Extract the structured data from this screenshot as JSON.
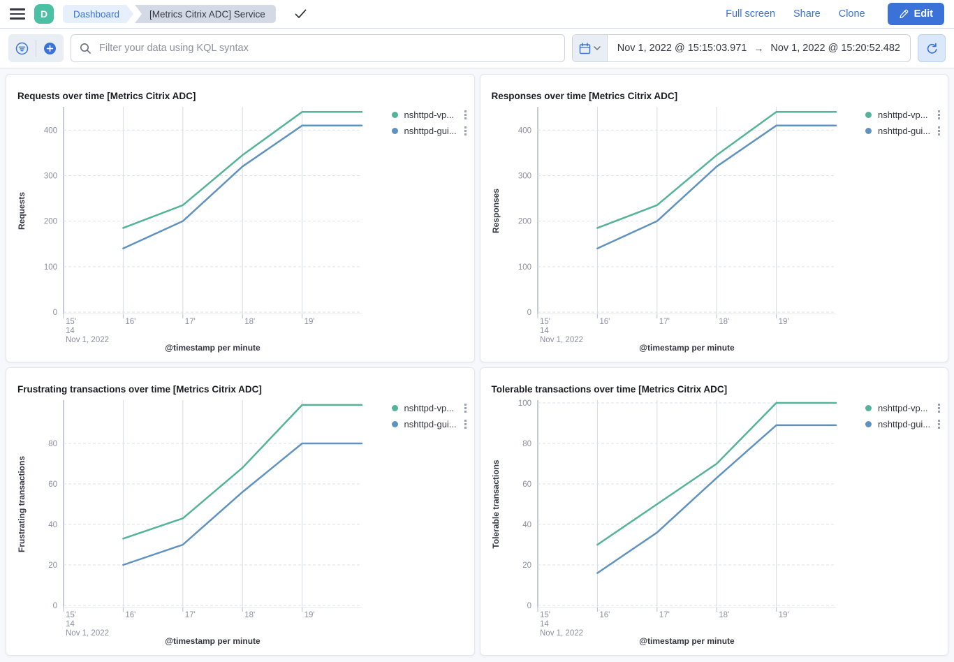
{
  "header": {
    "avatar_initial": "D",
    "breadcrumbs": [
      "Dashboard",
      "[Metrics Citrix ADC] Service"
    ],
    "actions": [
      "Full screen",
      "Share",
      "Clone"
    ],
    "edit_label": "Edit"
  },
  "toolbar": {
    "search_placeholder": "Filter your data using KQL syntax",
    "date_start": "Nov 1, 2022 @ 15:15:03.971",
    "date_end": "Nov 1, 2022 @ 15:20:52.482"
  },
  "colors": {
    "accent_blue": "#3a72d8",
    "avatar_green": "#4cc0a4",
    "breadcrumb_active_bg": "#e6effc",
    "breadcrumb_inactive_bg": "#d3dae6"
  },
  "chart_data": {
    "note": "see charts[] — four line charts, x = minutes of Nov 1, 2022 14h (15'-20'), buckets per minute"
  },
  "charts": [
    {
      "title": "Requests over time [Metrics Citrix ADC]",
      "type": "line",
      "y_title": "Requests",
      "y_ticks": [
        0,
        100,
        200,
        300,
        400
      ],
      "y_max": 445,
      "x_title": "@timestamp per minute",
      "x_points": [
        16,
        17,
        18,
        19,
        20
      ],
      "x_ticks": [
        {
          "m": 15,
          "label": "15'",
          "sub": [
            "14",
            "Nov 1, 2022"
          ]
        },
        {
          "m": 16,
          "label": "16'"
        },
        {
          "m": 17,
          "label": "17'"
        },
        {
          "m": 18,
          "label": "18'"
        },
        {
          "m": 19,
          "label": "19'"
        }
      ],
      "series": [
        {
          "name": "nshttpd-vp...",
          "color": "#54b399",
          "values": [
            185,
            235,
            345,
            440,
            440
          ]
        },
        {
          "name": "nshttpd-gui...",
          "color": "#6092c0",
          "values": [
            140,
            200,
            320,
            410,
            410
          ]
        }
      ]
    },
    {
      "title": "Responses over time [Metrics Citrix ADC]",
      "type": "line",
      "y_title": "Responses",
      "y_ticks": [
        0,
        100,
        200,
        300,
        400
      ],
      "y_max": 445,
      "x_title": "@timestamp per minute",
      "x_points": [
        16,
        17,
        18,
        19,
        20
      ],
      "x_ticks": [
        {
          "m": 15,
          "label": "15'",
          "sub": [
            "14",
            "Nov 1, 2022"
          ]
        },
        {
          "m": 16,
          "label": "16'"
        },
        {
          "m": 17,
          "label": "17'"
        },
        {
          "m": 18,
          "label": "18'"
        },
        {
          "m": 19,
          "label": "19'"
        }
      ],
      "series": [
        {
          "name": "nshttpd-vp...",
          "color": "#54b399",
          "values": [
            185,
            235,
            345,
            440,
            440
          ]
        },
        {
          "name": "nshttpd-gui...",
          "color": "#6092c0",
          "values": [
            140,
            200,
            320,
            410,
            410
          ]
        }
      ]
    },
    {
      "title": "Frustrating transactions over time [Metrics Citrix ADC]",
      "type": "line",
      "y_title": "Frustrating transactions",
      "y_ticks": [
        0,
        20,
        40,
        60,
        80
      ],
      "y_max": 100,
      "x_title": "@timestamp per minute",
      "x_points": [
        16,
        17,
        18,
        19,
        20
      ],
      "x_ticks": [
        {
          "m": 15,
          "label": "15'",
          "sub": [
            "14",
            "Nov 1, 2022"
          ]
        },
        {
          "m": 16,
          "label": "16'"
        },
        {
          "m": 17,
          "label": "17'"
        },
        {
          "m": 18,
          "label": "18'"
        },
        {
          "m": 19,
          "label": "19'"
        }
      ],
      "series": [
        {
          "name": "nshttpd-vp...",
          "color": "#54b399",
          "values": [
            33,
            43,
            68,
            99,
            99
          ]
        },
        {
          "name": "nshttpd-gui...",
          "color": "#6092c0",
          "values": [
            20,
            30,
            56,
            80,
            80
          ]
        }
      ]
    },
    {
      "title": "Tolerable transactions over time [Metrics Citrix ADC]",
      "type": "line",
      "y_title": "Tolerable transactions",
      "y_ticks": [
        0,
        20,
        40,
        60,
        80,
        100
      ],
      "y_max": 100,
      "x_title": "@timestamp per minute",
      "x_points": [
        16,
        17,
        18,
        19,
        20
      ],
      "x_ticks": [
        {
          "m": 15,
          "label": "15'",
          "sub": [
            "14",
            "Nov 1, 2022"
          ]
        },
        {
          "m": 16,
          "label": "16'"
        },
        {
          "m": 17,
          "label": "17'"
        },
        {
          "m": 18,
          "label": "18'"
        },
        {
          "m": 19,
          "label": "19'"
        }
      ],
      "series": [
        {
          "name": "nshttpd-vp...",
          "color": "#54b399",
          "values": [
            30,
            50,
            70,
            100,
            100
          ]
        },
        {
          "name": "nshttpd-gui...",
          "color": "#6092c0",
          "values": [
            16,
            36,
            63,
            89,
            89
          ]
        }
      ]
    }
  ]
}
